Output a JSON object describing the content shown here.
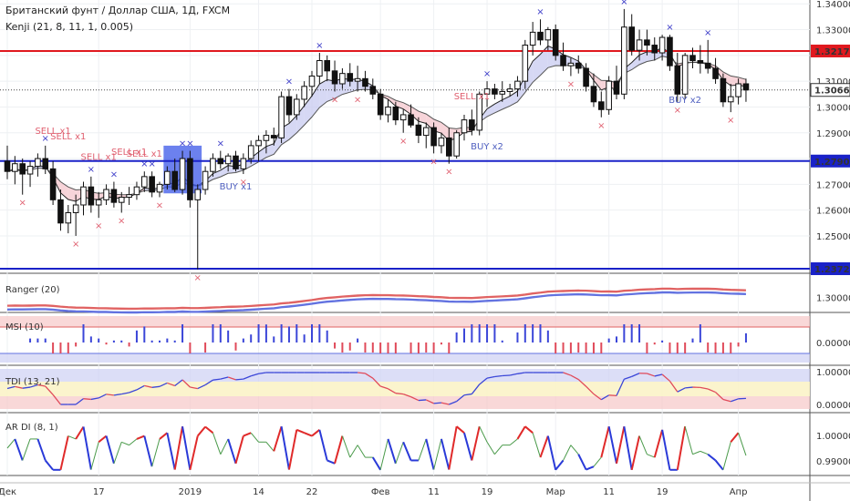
{
  "header": {
    "symbol_line": "Британский фунт / Доллар США, 1Д, FXCM",
    "indicator_line": "Kenji (21, 8, 11, 1, 0.005)"
  },
  "panes": {
    "ranger": "Ranger (20)",
    "msi": "MSI (10)",
    "tdi": "TDI (13, 21)",
    "ardi": "AR DI (8, 1)"
  },
  "colors": {
    "up": "#ffffff",
    "down": "#111111",
    "red_level": "#e0191f",
    "blue_level": "#1a22c8",
    "cross": "#3a3ac8",
    "sell": "#e06070",
    "buy": "#5060c0"
  },
  "chart_data": {
    "type": "candlestick",
    "title": "Британский фунт / Доллар США, 1Д, FXCM",
    "x_ticks": [
      {
        "i": 0,
        "label": "Дек"
      },
      {
        "i": 12,
        "label": "17"
      },
      {
        "i": 24,
        "label": "2019"
      },
      {
        "i": 33,
        "label": "14"
      },
      {
        "i": 40,
        "label": "22"
      },
      {
        "i": 49,
        "label": "Фев"
      },
      {
        "i": 56,
        "label": "11"
      },
      {
        "i": 63,
        "label": "19"
      },
      {
        "i": 72,
        "label": "Мар"
      },
      {
        "i": 79,
        "label": "11"
      },
      {
        "i": 86,
        "label": "19"
      },
      {
        "i": 96,
        "label": "Апр"
      }
    ],
    "ylim": [
      1.2355,
      1.3415
    ],
    "y_ticks": [
      "1.34000",
      "1.33000",
      "1.31000",
      "1.30000",
      "1.29000",
      "1.27000",
      "1.26000",
      "1.25000"
    ],
    "levels": [
      {
        "value": 1.32172,
        "label": "1.32172",
        "color": "#e0191f"
      },
      {
        "value": 1.27904,
        "label": "1.27904",
        "color": "#1a22c8"
      },
      {
        "value": 1.23727,
        "label": "1.23727",
        "color": "#1a22c8"
      }
    ],
    "last_price": {
      "value": 1.30661,
      "label": "1.30661"
    },
    "candles": [
      {
        "o": 1.279,
        "h": 1.285,
        "l": 1.272,
        "c": 1.275
      },
      {
        "o": 1.275,
        "h": 1.281,
        "l": 1.27,
        "c": 1.278
      },
      {
        "o": 1.278,
        "h": 1.28,
        "l": 1.266,
        "c": 1.274
      },
      {
        "o": 1.274,
        "h": 1.279,
        "l": 1.269,
        "c": 1.277
      },
      {
        "o": 1.277,
        "h": 1.282,
        "l": 1.273,
        "c": 1.28
      },
      {
        "o": 1.28,
        "h": 1.285,
        "l": 1.274,
        "c": 1.276
      },
      {
        "o": 1.276,
        "h": 1.279,
        "l": 1.262,
        "c": 1.264
      },
      {
        "o": 1.264,
        "h": 1.268,
        "l": 1.252,
        "c": 1.255
      },
      {
        "o": 1.255,
        "h": 1.262,
        "l": 1.251,
        "c": 1.259
      },
      {
        "o": 1.259,
        "h": 1.266,
        "l": 1.25,
        "c": 1.262
      },
      {
        "o": 1.262,
        "h": 1.271,
        "l": 1.258,
        "c": 1.269
      },
      {
        "o": 1.269,
        "h": 1.273,
        "l": 1.259,
        "c": 1.262
      },
      {
        "o": 1.262,
        "h": 1.267,
        "l": 1.257,
        "c": 1.264
      },
      {
        "o": 1.264,
        "h": 1.27,
        "l": 1.262,
        "c": 1.268
      },
      {
        "o": 1.268,
        "h": 1.271,
        "l": 1.261,
        "c": 1.263
      },
      {
        "o": 1.263,
        "h": 1.267,
        "l": 1.259,
        "c": 1.265
      },
      {
        "o": 1.265,
        "h": 1.269,
        "l": 1.262,
        "c": 1.266
      },
      {
        "o": 1.266,
        "h": 1.271,
        "l": 1.264,
        "c": 1.269
      },
      {
        "o": 1.269,
        "h": 1.275,
        "l": 1.267,
        "c": 1.273
      },
      {
        "o": 1.273,
        "h": 1.275,
        "l": 1.265,
        "c": 1.267
      },
      {
        "o": 1.267,
        "h": 1.271,
        "l": 1.265,
        "c": 1.27
      },
      {
        "o": 1.27,
        "h": 1.277,
        "l": 1.268,
        "c": 1.275
      },
      {
        "o": 1.275,
        "h": 1.28,
        "l": 1.267,
        "c": 1.268
      },
      {
        "o": 1.268,
        "h": 1.283,
        "l": 1.266,
        "c": 1.28
      },
      {
        "o": 1.28,
        "h": 1.283,
        "l": 1.261,
        "c": 1.264
      },
      {
        "o": 1.264,
        "h": 1.27,
        "l": 1.237,
        "c": 1.268
      },
      {
        "o": 1.268,
        "h": 1.277,
        "l": 1.266,
        "c": 1.275
      },
      {
        "o": 1.275,
        "h": 1.282,
        "l": 1.273,
        "c": 1.28
      },
      {
        "o": 1.28,
        "h": 1.283,
        "l": 1.276,
        "c": 1.278
      },
      {
        "o": 1.278,
        "h": 1.282,
        "l": 1.275,
        "c": 1.281
      },
      {
        "o": 1.281,
        "h": 1.283,
        "l": 1.275,
        "c": 1.276
      },
      {
        "o": 1.276,
        "h": 1.282,
        "l": 1.274,
        "c": 1.28
      },
      {
        "o": 1.28,
        "h": 1.287,
        "l": 1.278,
        "c": 1.285
      },
      {
        "o": 1.285,
        "h": 1.289,
        "l": 1.279,
        "c": 1.287
      },
      {
        "o": 1.287,
        "h": 1.291,
        "l": 1.282,
        "c": 1.289
      },
      {
        "o": 1.289,
        "h": 1.292,
        "l": 1.285,
        "c": 1.288
      },
      {
        "o": 1.288,
        "h": 1.306,
        "l": 1.286,
        "c": 1.304
      },
      {
        "o": 1.304,
        "h": 1.307,
        "l": 1.294,
        "c": 1.297
      },
      {
        "o": 1.297,
        "h": 1.305,
        "l": 1.295,
        "c": 1.303
      },
      {
        "o": 1.303,
        "h": 1.31,
        "l": 1.3,
        "c": 1.308
      },
      {
        "o": 1.308,
        "h": 1.314,
        "l": 1.304,
        "c": 1.312
      },
      {
        "o": 1.312,
        "h": 1.321,
        "l": 1.309,
        "c": 1.318
      },
      {
        "o": 1.318,
        "h": 1.32,
        "l": 1.31,
        "c": 1.314
      },
      {
        "o": 1.314,
        "h": 1.318,
        "l": 1.306,
        "c": 1.309
      },
      {
        "o": 1.309,
        "h": 1.315,
        "l": 1.307,
        "c": 1.313
      },
      {
        "o": 1.313,
        "h": 1.317,
        "l": 1.308,
        "c": 1.31
      },
      {
        "o": 1.31,
        "h": 1.316,
        "l": 1.306,
        "c": 1.311
      },
      {
        "o": 1.311,
        "h": 1.314,
        "l": 1.306,
        "c": 1.308
      },
      {
        "o": 1.308,
        "h": 1.311,
        "l": 1.303,
        "c": 1.305
      },
      {
        "o": 1.305,
        "h": 1.307,
        "l": 1.295,
        "c": 1.297
      },
      {
        "o": 1.297,
        "h": 1.303,
        "l": 1.294,
        "c": 1.3
      },
      {
        "o": 1.3,
        "h": 1.302,
        "l": 1.293,
        "c": 1.295
      },
      {
        "o": 1.295,
        "h": 1.299,
        "l": 1.29,
        "c": 1.297
      },
      {
        "o": 1.297,
        "h": 1.301,
        "l": 1.292,
        "c": 1.293
      },
      {
        "o": 1.293,
        "h": 1.296,
        "l": 1.286,
        "c": 1.289
      },
      {
        "o": 1.289,
        "h": 1.294,
        "l": 1.284,
        "c": 1.292
      },
      {
        "o": 1.292,
        "h": 1.294,
        "l": 1.282,
        "c": 1.285
      },
      {
        "o": 1.285,
        "h": 1.29,
        "l": 1.282,
        "c": 1.288
      },
      {
        "o": 1.288,
        "h": 1.292,
        "l": 1.278,
        "c": 1.281
      },
      {
        "o": 1.281,
        "h": 1.291,
        "l": 1.28,
        "c": 1.29
      },
      {
        "o": 1.29,
        "h": 1.297,
        "l": 1.287,
        "c": 1.295
      },
      {
        "o": 1.295,
        "h": 1.299,
        "l": 1.289,
        "c": 1.291
      },
      {
        "o": 1.291,
        "h": 1.306,
        "l": 1.289,
        "c": 1.305
      },
      {
        "o": 1.305,
        "h": 1.31,
        "l": 1.3,
        "c": 1.307
      },
      {
        "o": 1.307,
        "h": 1.309,
        "l": 1.303,
        "c": 1.305
      },
      {
        "o": 1.305,
        "h": 1.31,
        "l": 1.302,
        "c": 1.306
      },
      {
        "o": 1.306,
        "h": 1.309,
        "l": 1.304,
        "c": 1.307
      },
      {
        "o": 1.307,
        "h": 1.312,
        "l": 1.304,
        "c": 1.31
      },
      {
        "o": 1.31,
        "h": 1.326,
        "l": 1.307,
        "c": 1.324
      },
      {
        "o": 1.324,
        "h": 1.333,
        "l": 1.32,
        "c": 1.329
      },
      {
        "o": 1.329,
        "h": 1.334,
        "l": 1.324,
        "c": 1.326
      },
      {
        "o": 1.326,
        "h": 1.331,
        "l": 1.322,
        "c": 1.33
      },
      {
        "o": 1.33,
        "h": 1.332,
        "l": 1.318,
        "c": 1.32
      },
      {
        "o": 1.32,
        "h": 1.325,
        "l": 1.314,
        "c": 1.316
      },
      {
        "o": 1.316,
        "h": 1.319,
        "l": 1.312,
        "c": 1.317
      },
      {
        "o": 1.317,
        "h": 1.32,
        "l": 1.313,
        "c": 1.315
      },
      {
        "o": 1.315,
        "h": 1.317,
        "l": 1.306,
        "c": 1.308
      },
      {
        "o": 1.308,
        "h": 1.313,
        "l": 1.3,
        "c": 1.302
      },
      {
        "o": 1.302,
        "h": 1.306,
        "l": 1.296,
        "c": 1.299
      },
      {
        "o": 1.299,
        "h": 1.312,
        "l": 1.297,
        "c": 1.31
      },
      {
        "o": 1.31,
        "h": 1.316,
        "l": 1.303,
        "c": 1.305
      },
      {
        "o": 1.305,
        "h": 1.338,
        "l": 1.303,
        "c": 1.331
      },
      {
        "o": 1.331,
        "h": 1.336,
        "l": 1.32,
        "c": 1.322
      },
      {
        "o": 1.322,
        "h": 1.33,
        "l": 1.318,
        "c": 1.326
      },
      {
        "o": 1.326,
        "h": 1.33,
        "l": 1.32,
        "c": 1.324
      },
      {
        "o": 1.324,
        "h": 1.327,
        "l": 1.318,
        "c": 1.321
      },
      {
        "o": 1.321,
        "h": 1.328,
        "l": 1.318,
        "c": 1.327
      },
      {
        "o": 1.327,
        "h": 1.328,
        "l": 1.314,
        "c": 1.316
      },
      {
        "o": 1.316,
        "h": 1.321,
        "l": 1.302,
        "c": 1.305
      },
      {
        "o": 1.305,
        "h": 1.321,
        "l": 1.303,
        "c": 1.32
      },
      {
        "o": 1.32,
        "h": 1.323,
        "l": 1.315,
        "c": 1.318
      },
      {
        "o": 1.318,
        "h": 1.324,
        "l": 1.313,
        "c": 1.317
      },
      {
        "o": 1.317,
        "h": 1.326,
        "l": 1.313,
        "c": 1.315
      },
      {
        "o": 1.315,
        "h": 1.319,
        "l": 1.309,
        "c": 1.311
      },
      {
        "o": 1.311,
        "h": 1.313,
        "l": 1.3,
        "c": 1.302
      },
      {
        "o": 1.302,
        "h": 1.309,
        "l": 1.298,
        "c": 1.304
      },
      {
        "o": 1.304,
        "h": 1.311,
        "l": 1.301,
        "c": 1.309
      },
      {
        "o": 1.309,
        "h": 1.311,
        "l": 1.302,
        "c": 1.3066
      }
    ],
    "annotations": [
      {
        "i": 6,
        "text": "SELL x1",
        "kind": "sell",
        "price": 1.2895
      },
      {
        "i": 8,
        "text": "SELL x1",
        "kind": "sell",
        "price": 1.2875
      },
      {
        "i": 16,
        "text": "SELL x1",
        "kind": "sell",
        "price": 1.2815
      },
      {
        "i": 18,
        "text": "SELL x1",
        "kind": "sell",
        "price": 1.2808
      },
      {
        "i": 12,
        "text": "SELL x1",
        "kind": "sell",
        "price": 1.2795
      },
      {
        "i": 30,
        "text": "BUY x1",
        "kind": "buy",
        "price": 1.268
      },
      {
        "i": 61,
        "text": "SELL x1",
        "kind": "sell",
        "price": 1.303
      },
      {
        "i": 63,
        "text": "BUY x2",
        "kind": "buy",
        "price": 1.2835
      },
      {
        "i": 89,
        "text": "BUY x2",
        "kind": "buy",
        "price": 1.3015
      }
    ],
    "panels": [
      {
        "name": "Ranger (20)",
        "tick_labels": [
          "1.30000"
        ]
      },
      {
        "name": "MSI (10)",
        "tick_labels": [
          "0.00000"
        ]
      },
      {
        "name": "TDI (13, 21)",
        "tick_labels": [
          "1.00000",
          "0.00000"
        ]
      },
      {
        "name": "AR DI (8, 1)",
        "tick_labels": [
          "1.00000",
          "0.99000"
        ]
      }
    ]
  }
}
